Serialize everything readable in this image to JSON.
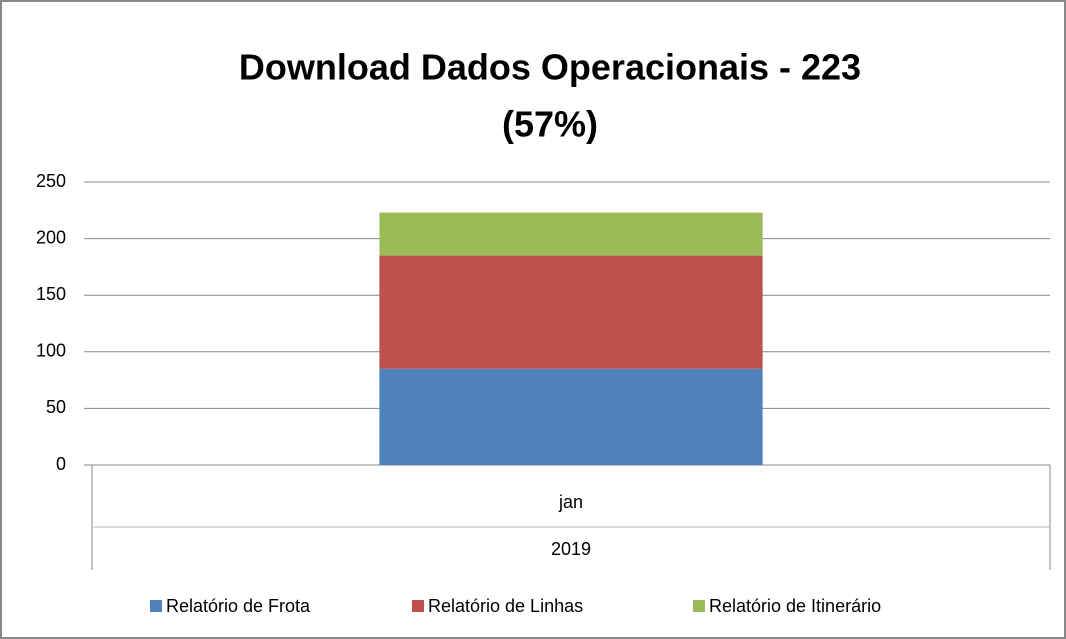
{
  "chart_data": {
    "type": "stacked_bar",
    "title": [
      "Download Dados Operacionais - 223",
      "(57%)"
    ],
    "categories": [
      "jan"
    ],
    "category_group": "2019",
    "series": [
      {
        "name": "Relatório de Frota",
        "color": "#4f81bd",
        "values": [
          85
        ]
      },
      {
        "name": "Relatório de Linhas",
        "color": "#c0504d",
        "values": [
          100
        ]
      },
      {
        "name": "Relatório de Itinerário",
        "color": "#9bbb59",
        "values": [
          38
        ]
      }
    ],
    "ylim": [
      0,
      250
    ],
    "yticks": [
      0,
      50,
      100,
      150,
      200,
      250
    ],
    "grid": true,
    "legend": "bottom"
  }
}
